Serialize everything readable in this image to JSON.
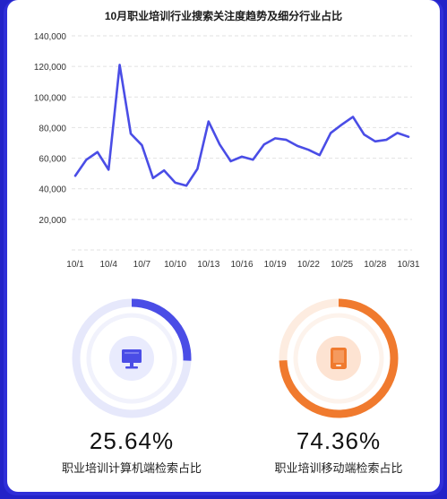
{
  "chart_data": {
    "type": "line",
    "title": "10月职业培训行业搜索关注度趋势及细分行业占比",
    "xlabel": "",
    "ylabel": "",
    "ylim": [
      0,
      140000
    ],
    "yticks": [
      20000,
      40000,
      60000,
      80000,
      100000,
      120000,
      140000
    ],
    "ytick_labels": [
      "20,000",
      "40,000",
      "60,000",
      "80,000",
      "100,000",
      "120,000",
      "140,000"
    ],
    "xtick_labels": [
      "10/1",
      "10/4",
      "10/7",
      "10/10",
      "10/13",
      "10/16",
      "10/19",
      "10/22",
      "10/25",
      "10/28",
      "10/31"
    ],
    "grid": "horizontal dashed",
    "series": [
      {
        "color": "#4a4de6",
        "x": [
          "10/1",
          "10/2",
          "10/3",
          "10/4",
          "10/5",
          "10/6",
          "10/7",
          "10/8",
          "10/9",
          "10/10",
          "10/11",
          "10/12",
          "10/13",
          "10/14",
          "10/15",
          "10/16",
          "10/17",
          "10/18",
          "10/19",
          "10/20",
          "10/21",
          "10/22",
          "10/23",
          "10/24",
          "10/25",
          "10/26",
          "10/27",
          "10/28",
          "10/29",
          "10/30",
          "10/31"
        ],
        "values": [
          48500,
          59000,
          64000,
          52500,
          121000,
          76000,
          68500,
          47000,
          52000,
          44000,
          42000,
          53000,
          84000,
          69000,
          58000,
          61000,
          59000,
          69000,
          73000,
          72000,
          68000,
          65500,
          62000,
          76500,
          82000,
          87000,
          75500,
          71000,
          72000,
          76500,
          74000
        ]
      }
    ]
  },
  "share": {
    "pc": {
      "value": 25.64,
      "pct_label": "25.64%",
      "caption": "职业培训计算机端检索占比",
      "color": "#4a4de6",
      "track_color": "#e6e8fb",
      "icon": "monitor-icon"
    },
    "mobile": {
      "value": 74.36,
      "pct_label": "74.36%",
      "caption": "职业培训移动端检索占比",
      "color": "#f07a2e",
      "track_color": "#fdece0",
      "icon": "mobile-device-icon"
    }
  }
}
